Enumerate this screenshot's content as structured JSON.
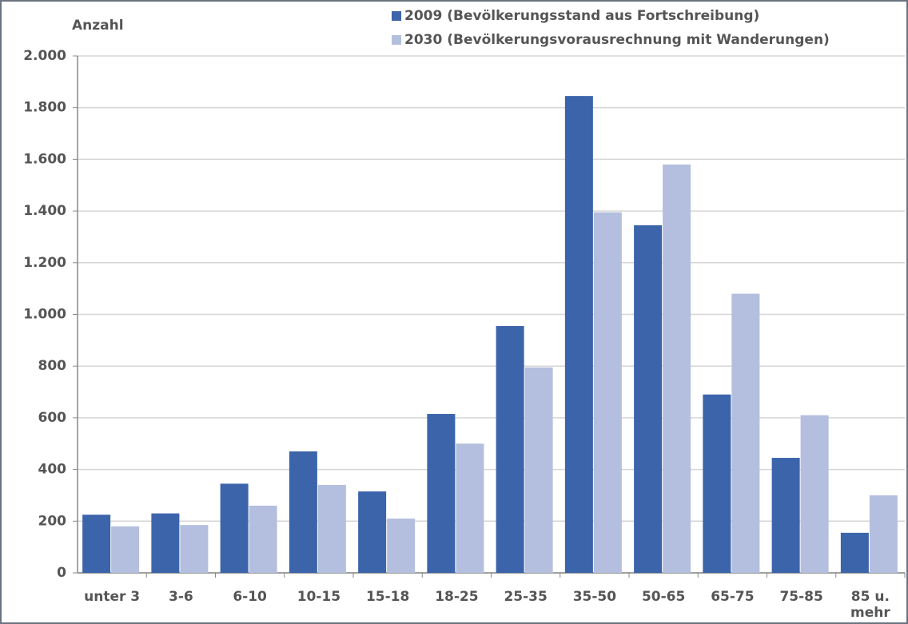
{
  "chart_data": {
    "type": "bar",
    "y_label": "Anzahl",
    "categories": [
      "unter 3",
      "3-6",
      "6-10",
      "10-15",
      "15-18",
      "18-25",
      "25-35",
      "35-50",
      "50-65",
      "65-75",
      "75-85",
      "85 u. mehr"
    ],
    "series": [
      {
        "name": "2009 (Bevölkerungsstand aus Fortschreibung)",
        "color": "#3b64aa",
        "values": [
          225,
          230,
          345,
          470,
          315,
          615,
          955,
          1845,
          1345,
          690,
          445,
          155
        ]
      },
      {
        "name": "2030 (Bevölkerungsvorausrechnung mit Wanderungen)",
        "color": "#b4bfdf",
        "values": [
          180,
          185,
          260,
          340,
          210,
          500,
          795,
          1395,
          1580,
          1080,
          610,
          300
        ]
      }
    ],
    "ylim": [
      0,
      2000
    ],
    "yticks": [
      0,
      200,
      400,
      600,
      800,
      {
        "value": 1000,
        "label": "1.000"
      },
      {
        "value": 1200,
        "label": "1.200"
      },
      {
        "value": 1400,
        "label": "1.400"
      },
      {
        "value": 1600,
        "label": "1.600"
      },
      {
        "value": 1800,
        "label": "1.800"
      },
      {
        "value": 2000,
        "label": "2.000"
      }
    ],
    "grid": true
  }
}
